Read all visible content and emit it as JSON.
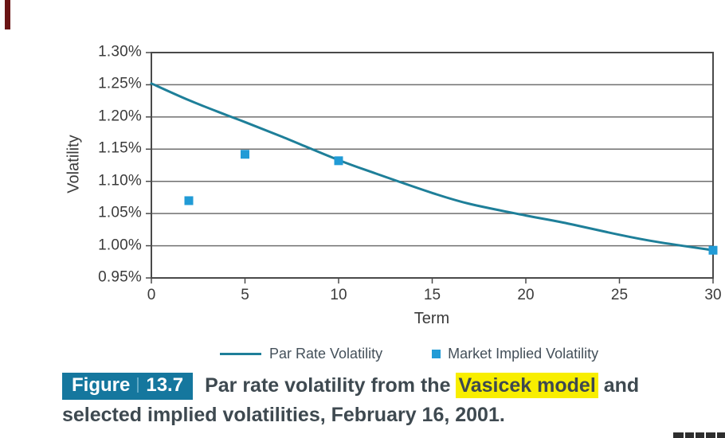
{
  "page": {
    "background": "#FFFFFF",
    "accent_bar_color": "#6B1515"
  },
  "chart_data": {
    "type": "line",
    "title": "",
    "xlabel": "Term",
    "ylabel": "Volatility",
    "xlim": [
      0,
      30
    ],
    "ylim": [
      0.95,
      1.3
    ],
    "x_ticks": [
      0,
      5,
      10,
      15,
      20,
      25,
      30
    ],
    "y_ticks": [
      1.3,
      1.25,
      1.2,
      1.15,
      1.1,
      1.05,
      1.0,
      0.95
    ],
    "y_tick_format": "0.00%",
    "grid": "horizontal",
    "legend_position": "bottom",
    "axis_text_color": "#3B3B3B",
    "grid_color": "#6F6F6F",
    "frame_color": "#4A4A4A",
    "series": [
      {
        "name": "Par Rate Volatility",
        "type": "line",
        "color": "#1E7F99",
        "points": [
          [
            0,
            1.252
          ],
          [
            2,
            1.226
          ],
          [
            4,
            1.203
          ],
          [
            5,
            1.192
          ],
          [
            7,
            1.169
          ],
          [
            10,
            1.133
          ],
          [
            12,
            1.112
          ],
          [
            15,
            1.082
          ],
          [
            17,
            1.065
          ],
          [
            20,
            1.047
          ],
          [
            22,
            1.036
          ],
          [
            25,
            1.017
          ],
          [
            27,
            1.006
          ],
          [
            30,
            0.993
          ]
        ]
      },
      {
        "name": "Market Implied Volatility",
        "type": "scatter",
        "color": "#219BD6",
        "points": [
          [
            2,
            1.07
          ],
          [
            5,
            1.142
          ],
          [
            10,
            1.132
          ],
          [
            30,
            0.993
          ]
        ]
      }
    ]
  },
  "figure_caption": {
    "badge_label": "Figure",
    "badge_number": "13.7",
    "badge_color": "#15779E",
    "text_before_highlight": "Par rate volatility from the ",
    "highlight_text": "Vasicek model",
    "text_after_highlight": " and selected implied volatilities, February 16, 2001.",
    "highlight_color": "#F8EE00",
    "text_color": "#3E4950"
  }
}
